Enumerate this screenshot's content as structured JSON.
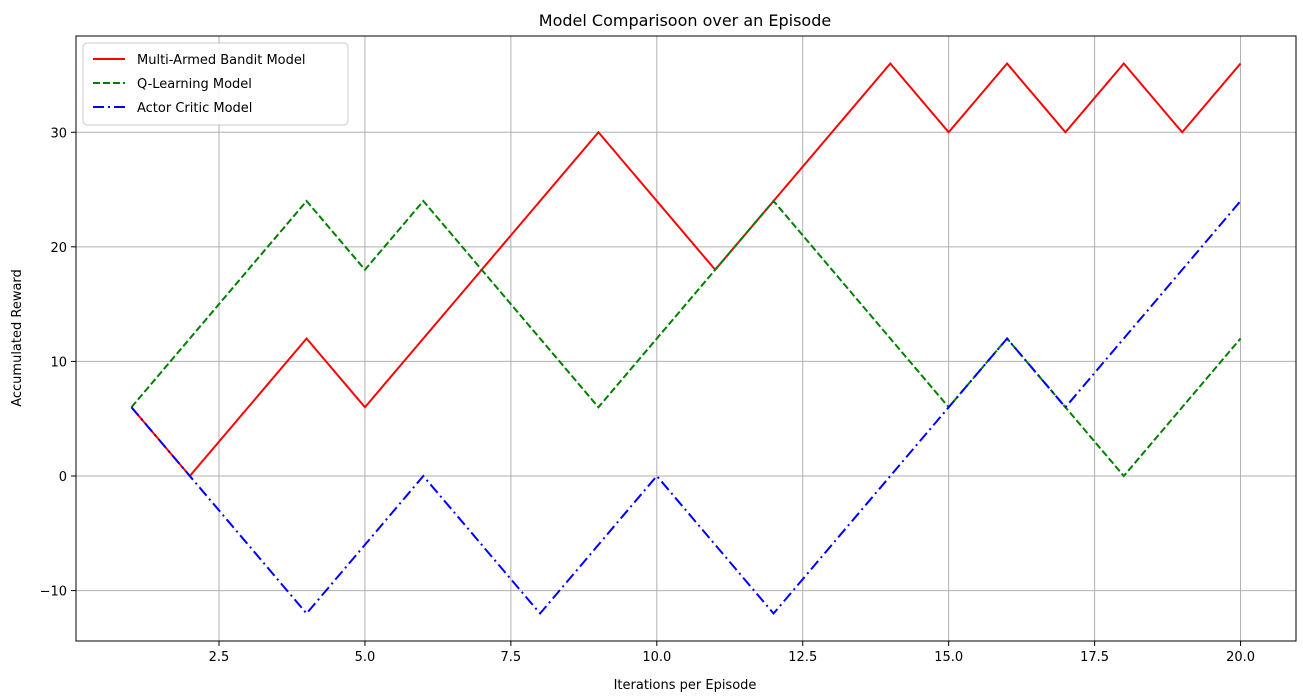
{
  "chart_data": {
    "type": "line",
    "title": "Model Comparisoon over an Episode",
    "xlabel": "Iterations per Episode",
    "ylabel": "Accumulated Reward",
    "xlim": [
      0.05,
      20.95
    ],
    "ylim": [
      -14.4,
      38.4
    ],
    "xticks": [
      2.5,
      5.0,
      7.5,
      10.0,
      12.5,
      15.0,
      17.5,
      20.0
    ],
    "xtick_labels": [
      "2.5",
      "5.0",
      "7.5",
      "10.0",
      "12.5",
      "15.0",
      "17.5",
      "20.0"
    ],
    "yticks": [
      -10,
      0,
      10,
      20,
      30
    ],
    "ytick_labels": [
      "−10",
      "0",
      "10",
      "20",
      "30"
    ],
    "grid": true,
    "legend_position": "top-left",
    "x": [
      1,
      2,
      3,
      4,
      5,
      6,
      7,
      8,
      9,
      10,
      11,
      12,
      13,
      14,
      15,
      16,
      17,
      18,
      19,
      20
    ],
    "series": [
      {
        "name": "Multi-Armed Bandit Model",
        "color": "#ff0000",
        "dash": "solid",
        "values": [
          6,
          0,
          6,
          12,
          6,
          12,
          18,
          24,
          30,
          24,
          18,
          24,
          30,
          36,
          30,
          36,
          30,
          36,
          30,
          36
        ]
      },
      {
        "name": "Q-Learning Model",
        "color": "#008000",
        "dash": "dashed",
        "values": [
          6,
          12,
          18,
          24,
          18,
          24,
          18,
          12,
          6,
          12,
          18,
          24,
          18,
          12,
          6,
          12,
          6,
          0,
          6,
          12
        ]
      },
      {
        "name": "Actor Critic Model",
        "color": "#0000ff",
        "dash": "dashdot",
        "values": [
          6,
          0,
          -6,
          -12,
          -6,
          0,
          -6,
          -12,
          -6,
          0,
          -6,
          -12,
          -6,
          0,
          6,
          12,
          6,
          12,
          18,
          24
        ]
      }
    ]
  }
}
